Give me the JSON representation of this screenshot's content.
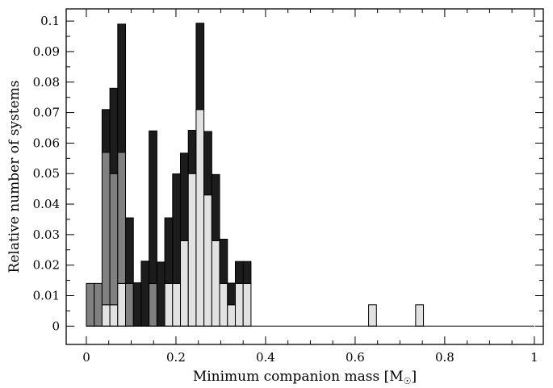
{
  "chart_data": {
    "type": "bar",
    "stacked": true,
    "bin_width": 0.0175,
    "bin_start": 0.0,
    "xlabel": "Minimum companion mass [M",
    "xlabel_unit_symbol": "☉",
    "xlabel_close": "]",
    "ylabel": "Relative number of systems",
    "xlim": [
      -0.045,
      1.02
    ],
    "ylim": [
      -0.006,
      0.104
    ],
    "xticks": [
      0,
      0.2,
      0.4,
      0.6,
      0.8,
      1
    ],
    "xtick_labels": [
      "0",
      "0.2",
      "0.4",
      "0.6",
      "0.8",
      "1"
    ],
    "yticks": [
      0,
      0.01,
      0.02,
      0.03,
      0.04,
      0.05,
      0.06,
      0.07,
      0.08,
      0.09,
      0.1
    ],
    "ytick_labels": [
      "0",
      "0.01",
      "0.02",
      "0.03",
      "0.04",
      "0.05",
      "0.06",
      "0.07",
      "0.08",
      "0.09",
      "0.1"
    ],
    "series": [
      {
        "color": "#e2e2e2",
        "values": [
          0,
          0,
          0.007,
          0.007,
          0.014,
          0,
          0,
          0,
          0,
          0,
          0.014,
          0.014,
          0.028,
          0.05,
          0.071,
          0.043,
          0.028,
          0.014,
          0.007,
          0.014,
          0.014,
          0,
          0,
          0,
          0,
          0,
          0,
          0,
          0,
          0,
          0,
          0,
          0
        ]
      },
      {
        "color": "#808080",
        "values": [
          0.014,
          0.014,
          0.05,
          0.043,
          0.043,
          0.014,
          0,
          0,
          0.014,
          0,
          0,
          0,
          0,
          0,
          0,
          0,
          0,
          0,
          0,
          0,
          0,
          0,
          0,
          0,
          0,
          0,
          0,
          0,
          0,
          0,
          0,
          0,
          0
        ]
      },
      {
        "color": "#1c1c1c",
        "values": [
          0,
          0,
          0.014,
          0.028,
          0.042,
          0.0215,
          0.0142,
          0.0213,
          0.05,
          0.021,
          0.0215,
          0.0359,
          0.0287,
          0.0142,
          0.0283,
          0.0208,
          0.0217,
          0.0145,
          0.0071,
          0.0072,
          0.0072,
          0,
          0,
          0,
          0,
          0,
          0,
          0,
          0,
          0,
          0,
          0,
          0
        ]
      }
    ],
    "outline_only": [
      {
        "bin": 36,
        "value": 0.007
      },
      {
        "bin": 42,
        "value": 0.007
      }
    ],
    "baseline_line_to": 1.0,
    "grid": false,
    "legend": "none"
  }
}
